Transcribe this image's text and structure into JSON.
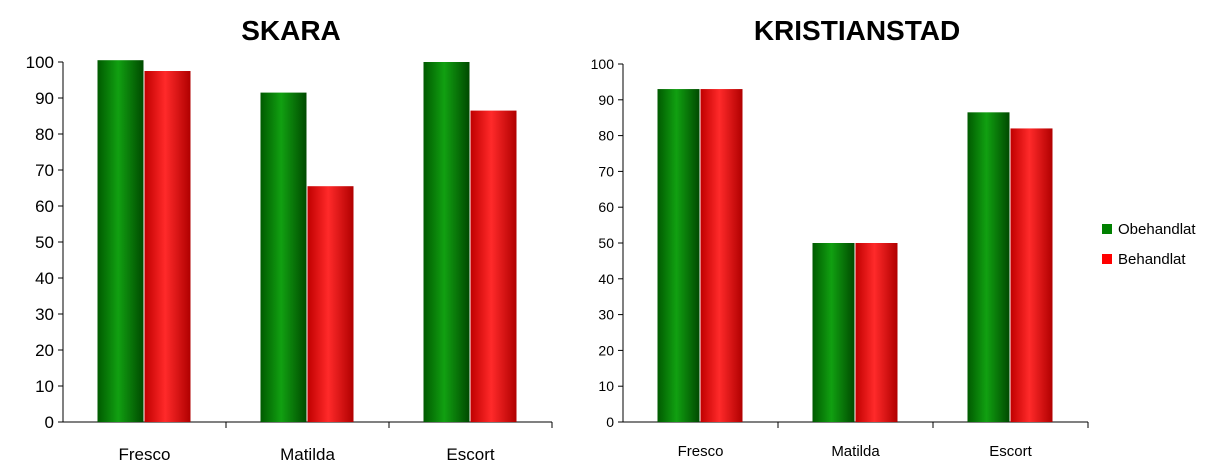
{
  "legend": {
    "items": [
      {
        "label": "Obehandlat",
        "color": "#008000"
      },
      {
        "label": "Behandlat",
        "color": "#ff0000"
      }
    ]
  },
  "chart_data": [
    {
      "type": "bar",
      "title": "SKARA",
      "categories": [
        "Fresco",
        "Matilda",
        "Escort"
      ],
      "series": [
        {
          "name": "Obehandlat",
          "color": "#008000",
          "values": [
            100.5,
            91.5,
            100
          ]
        },
        {
          "name": "Behandlat",
          "color": "#ff0000",
          "values": [
            97.5,
            65.5,
            86.5
          ]
        }
      ],
      "ylim": [
        0,
        100
      ],
      "yticks": [
        0,
        10,
        20,
        30,
        40,
        50,
        60,
        70,
        80,
        90,
        100
      ],
      "xlabel": "",
      "ylabel": "",
      "grid": false
    },
    {
      "type": "bar",
      "title": "KRISTIANSTAD",
      "categories": [
        "Fresco",
        "Matilda",
        "Escort"
      ],
      "series": [
        {
          "name": "Obehandlat",
          "color": "#008000",
          "values": [
            93,
            50,
            86.5
          ]
        },
        {
          "name": "Behandlat",
          "color": "#ff0000",
          "values": [
            93,
            50,
            82
          ]
        }
      ],
      "ylim": [
        0,
        100
      ],
      "yticks": [
        0,
        10,
        20,
        30,
        40,
        50,
        60,
        70,
        80,
        90,
        100
      ],
      "xlabel": "",
      "ylabel": "",
      "grid": false,
      "legend": "right"
    }
  ]
}
